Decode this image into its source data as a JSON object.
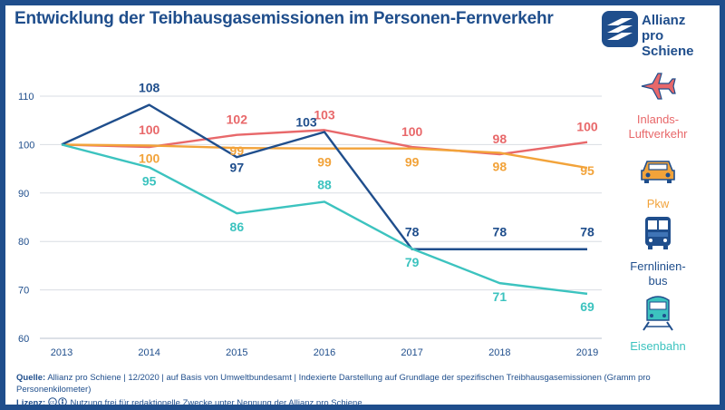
{
  "title": "Entwicklung der Teibhausgasemissionen im Personen-Fernverkehr",
  "logo": {
    "line1": "Allianz",
    "line2": "pro Schiene"
  },
  "colors": {
    "frame": "#1f4e8c",
    "inlandsflug": "#e8686a",
    "pkw": "#f2a33a",
    "fernlinienbus": "#1f4e8c",
    "eisenbahn": "#3cc3bf",
    "grid": "#d9dde3"
  },
  "chart_data": {
    "type": "line",
    "x": [
      2013,
      2014,
      2015,
      2016,
      2017,
      2018,
      2019
    ],
    "ylim": [
      60,
      110
    ],
    "yticks": [
      60,
      70,
      80,
      90,
      100,
      110
    ],
    "grid": true,
    "legend_placement": "right",
    "series": [
      {
        "name": "Inlands-Luftverkehr",
        "key": "inlandsflug",
        "values": [
          100,
          99.5,
          102,
          103,
          99.5,
          98,
          100.5
        ],
        "labels": [
          "",
          "100",
          "102",
          "103",
          "100",
          "98",
          "100"
        ]
      },
      {
        "name": "Pkw",
        "key": "pkw",
        "values": [
          100,
          99.8,
          99.3,
          99.2,
          99.2,
          98.3,
          95.2
        ],
        "labels": [
          "",
          "100",
          "99",
          "99",
          "99",
          "98",
          "95"
        ]
      },
      {
        "name": "Fernlinienbus",
        "key": "fernlinienbus",
        "values": [
          100,
          108.2,
          97.4,
          102.6,
          78.4,
          78.4,
          78.4
        ],
        "labels": [
          "",
          "108",
          "97",
          "103",
          "78",
          "78",
          "78"
        ]
      },
      {
        "name": "Eisenbahn",
        "key": "eisenbahn",
        "values": [
          100,
          95.3,
          85.8,
          88.2,
          78.5,
          71.4,
          69.2
        ],
        "labels": [
          "",
          "95",
          "86",
          "88",
          "79",
          "71",
          "69"
        ]
      }
    ]
  },
  "legend": [
    {
      "label": "Inlands-\nLuftverkehr",
      "icon": "airplane-icon",
      "key": "inlandsflug"
    },
    {
      "label": "Pkw",
      "icon": "car-icon",
      "key": "pkw"
    },
    {
      "label": "Fernlinien-\nbus",
      "icon": "bus-icon",
      "key": "fernlinienbus"
    },
    {
      "label": "Eisenbahn",
      "icon": "train-icon",
      "key": "eisenbahn"
    }
  ],
  "footer": {
    "quelle_label": "Quelle:",
    "quelle_text": "Allianz pro Schiene | 12/2020 | auf Basis von Umweltbundesamt | Indexierte Darstellung auf Grundlage der spezifischen Treibhausgasemissionen (Gramm pro Personenkilometer)",
    "lizenz_label": "Lizenz:",
    "lizenz_text": "Nutzung frei für redaktionelle Zwecke unter Nennung der Allianz pro Schiene"
  }
}
